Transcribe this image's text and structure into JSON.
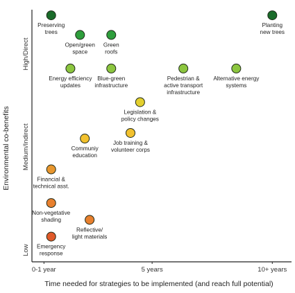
{
  "chart_data": {
    "type": "scatter",
    "xlabel": "Time needed for strategies to be implemented (and reach full potential)",
    "ylabel": "Environmental co-benefits",
    "x_ticks": [
      {
        "label": "0-1 year",
        "value": 0.5
      },
      {
        "label": "5 years",
        "value": 5
      },
      {
        "label": "10+ years",
        "value": 10
      }
    ],
    "y_ticks": [
      {
        "label": "Low",
        "value": 0.2
      },
      {
        "label": "Medium/Indirect",
        "value": 4.1
      },
      {
        "label": "High/Direct",
        "value": 8
      }
    ],
    "xlim": [
      0,
      10.8
    ],
    "ylim": [
      0,
      9
    ],
    "grid": false,
    "points": [
      {
        "label": [
          "Preserving",
          "trees"
        ],
        "x": 0.8,
        "y": 8.8,
        "color": "#1a6b2a"
      },
      {
        "label": [
          "Planting",
          "new trees"
        ],
        "x": 10.0,
        "y": 8.8,
        "color": "#1a6b2a"
      },
      {
        "label": [
          "Open/green",
          "space"
        ],
        "x": 2.0,
        "y": 8.1,
        "color": "#2e9e3c"
      },
      {
        "label": [
          "Green",
          "roofs"
        ],
        "x": 3.3,
        "y": 8.1,
        "color": "#2e9e3c"
      },
      {
        "label": [
          "Energy efficiency",
          "updates"
        ],
        "x": 1.6,
        "y": 6.9,
        "color": "#8cc63f"
      },
      {
        "label": [
          "Blue-green",
          "infrastructure"
        ],
        "x": 3.3,
        "y": 6.9,
        "color": "#8cc63f"
      },
      {
        "label": [
          "Pedestrian &",
          "active transport",
          "infrastructure"
        ],
        "x": 6.3,
        "y": 6.9,
        "color": "#8cc63f"
      },
      {
        "label": [
          "Alternative energy",
          "systems"
        ],
        "x": 8.5,
        "y": 6.9,
        "color": "#8cc63f"
      },
      {
        "label": [
          "Legislation &",
          "policy changes"
        ],
        "x": 4.5,
        "y": 5.7,
        "color": "#e3cf2e"
      },
      {
        "label": [
          "Job training &",
          "volunteer corps"
        ],
        "x": 4.1,
        "y": 4.6,
        "color": "#f2c12e"
      },
      {
        "label": [
          "Communiy",
          "education"
        ],
        "x": 2.2,
        "y": 4.4,
        "color": "#f2c12e"
      },
      {
        "label": [
          "Financial &",
          "technical asst."
        ],
        "x": 0.8,
        "y": 3.3,
        "color": "#e8962e"
      },
      {
        "label": [
          "Non-vegetative",
          "shading"
        ],
        "x": 0.8,
        "y": 2.1,
        "color": "#e8802e"
      },
      {
        "label": [
          "Reflective/",
          "light materials"
        ],
        "x": 2.4,
        "y": 1.5,
        "color": "#e8802e"
      },
      {
        "label": [
          "Emergency",
          "response"
        ],
        "x": 0.8,
        "y": 0.9,
        "color": "#e05a2a"
      }
    ]
  }
}
